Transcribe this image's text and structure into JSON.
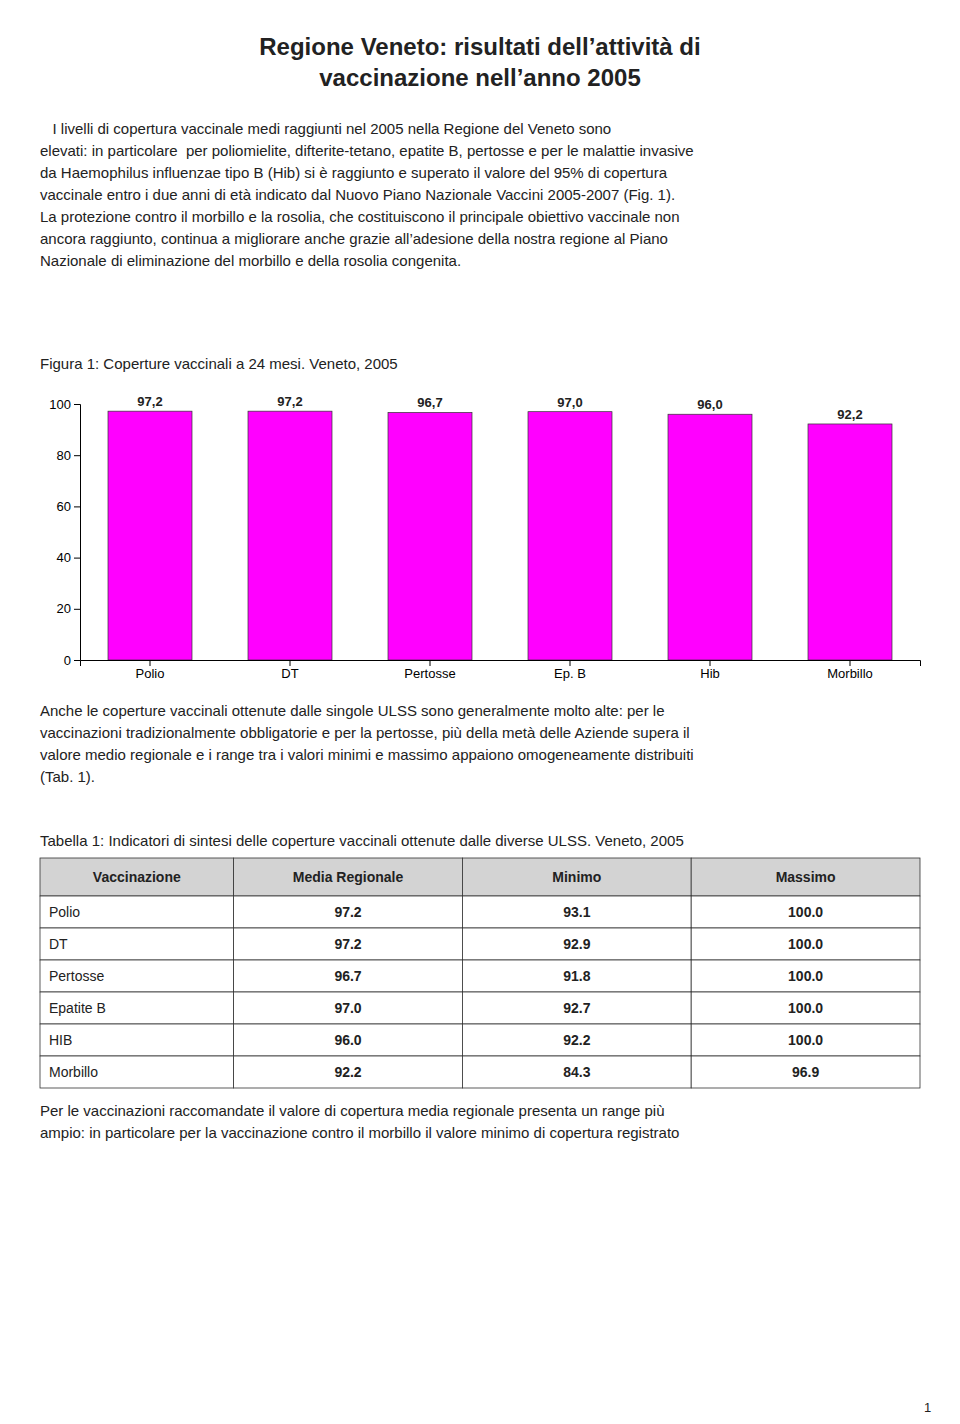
{
  "page": {
    "title": "Regione Veneto: risultati dell’attività di\nvaccinazione nell’anno 2005",
    "paragraphs": [
      "   I livelli di copertura vaccinale medi raggiunti nel 2005 nella Regione del Veneto sono\nelevati: in particolare  per poliomielite, difterite-tetano, epatite B, pertosse e per le malattie invasive\nda Haemophilus influenzae tipo B (Hib) si è raggiunto e superato il valore del 95% di copertura\nvaccinale entro i due anni di età indicato dal Nuovo Piano Nazionale Vaccini 2005-2007 (Fig. 1).\nLa protezione contro il morbillo e la rosolia, che costituiscono il principale obiettivo vaccinale non\nancora raggiunto, continua a migliorare anche grazie all’adesione della nostra regione al Piano\nNazionale di eliminazione del morbillo e della rosolia congenita.",
      "Anche le coperture vaccinali ottenute dalle singole ULSS sono generalmente molto alte: per le\nvaccinazioni tradizionalmente obbligatorie e per la pertosse, più della metà delle Aziende supera il\nvalore medio regionale e i range tra i valori minimi e massimo appaiono omogeneamente distribuiti\n(Tab. 1).",
      "Per le vaccinazioni raccomandate il valore di copertura media regionale presenta un range più\nampio: in particolare per la vaccinazione contro il morbillo il valore minimo di copertura registrato"
    ],
    "table": {
      "title": "Tabella 1: Indicatori di sintesi delle coperture vaccinali ottenute dalle diverse ULSS. Veneto, 2005",
      "headers": [
        "Vaccinazione",
        "Media Regionale",
        "Minimo",
        "Massimo"
      ],
      "rows": [
        [
          "Polio",
          "97.2",
          "93.1",
          "100.0"
        ],
        [
          "DT",
          "97.2",
          "92.9",
          "100.0"
        ],
        [
          "Pertosse",
          "96.7",
          "91.8",
          "100.0"
        ],
        [
          "Epatite B",
          "97.0",
          "92.7",
          "100.0"
        ],
        [
          "HIB",
          "96.0",
          "92.2",
          "100.0"
        ],
        [
          "Morbillo",
          "92.2",
          "84.3",
          "96.9"
        ]
      ]
    },
    "page_number": "1"
  },
  "chart_data": {
    "type": "bar",
    "title": "Figura 1: Coperture vaccinali a 24 mesi. Veneto, 2005",
    "categories": [
      "Polio",
      "DT",
      "Pertosse",
      "Ep. B",
      "Hib",
      "Morbillo"
    ],
    "values": [
      97.2,
      97.2,
      96.7,
      97.0,
      96.0,
      92.2
    ],
    "value_labels": [
      "97,2",
      "97,2",
      "96,7",
      "97,0",
      "96,0",
      "92,2"
    ],
    "data_labels": true,
    "color": "#FF00FF",
    "ylim": [
      0,
      100
    ],
    "yticks": [
      0,
      20,
      40,
      60,
      80,
      100
    ],
    "grid": false
  }
}
